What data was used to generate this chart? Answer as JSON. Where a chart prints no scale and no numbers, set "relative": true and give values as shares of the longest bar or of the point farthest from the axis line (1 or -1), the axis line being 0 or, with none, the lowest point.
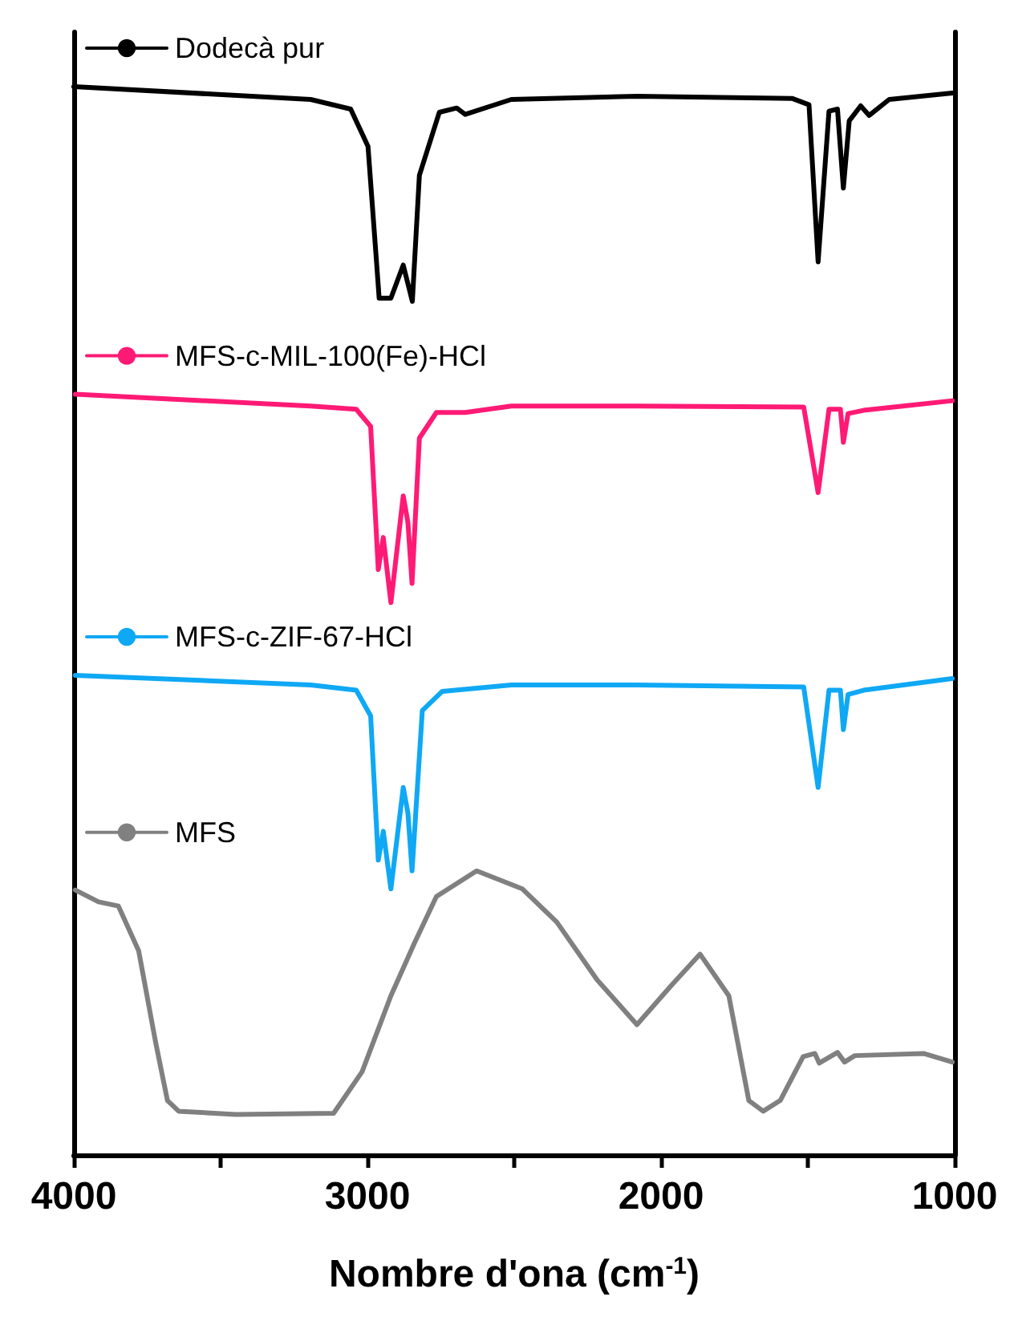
{
  "chart_data": {
    "type": "line",
    "relative": true,
    "xlabel": "Nombre d'ona (cm$^{-1}$)",
    "xlim": [
      4000,
      1000
    ],
    "xticks": [
      4000,
      {
        "value": 3500,
        "label": null
      },
      3000,
      {
        "value": 2500,
        "label": null
      },
      2000,
      {
        "value": 1500,
        "label": null
      },
      1000
    ],
    "legend": "top left",
    "grid": false,
    "marker": "none",
    "line_style": "solid",
    "series": [
      {
        "name": "Dodecà pur",
        "color": "#000000",
        "x": [
          4000,
          3193,
          3057,
          2998,
          2969,
          2960,
          2920,
          2878,
          2847,
          2823,
          2755,
          2696,
          2667,
          2510,
          2082,
          1554,
          1496,
          1465,
          1428,
          1399,
          1379,
          1359,
          1320,
          1291,
          1223,
          1008
        ],
        "values": [
          1.0,
          0.988,
          0.979,
          0.944,
          0.836,
          0.802,
          0.802,
          0.833,
          0.799,
          0.917,
          0.976,
          0.98,
          0.974,
          0.988,
          0.991,
          0.989,
          0.983,
          0.836,
          0.977,
          0.979,
          0.905,
          0.968,
          0.982,
          0.973,
          0.988,
          0.994
        ]
      },
      {
        "name": "MFS-c-MIL-100(Fe)-HCl",
        "color": "#ff1a75",
        "x": [
          3995,
          3193,
          3038,
          2989,
          2963,
          2946,
          2920,
          2878,
          2862,
          2848,
          2823,
          2765,
          2667,
          2510,
          2082,
          1514,
          1465,
          1428,
          1389,
          1379,
          1363,
          1310,
          1008
        ],
        "values": [
          0.712,
          0.701,
          0.698,
          0.682,
          0.548,
          0.578,
          0.517,
          0.617,
          0.592,
          0.535,
          0.671,
          0.695,
          0.695,
          0.701,
          0.701,
          0.7,
          0.62,
          0.698,
          0.698,
          0.667,
          0.694,
          0.697,
          0.706
        ]
      },
      {
        "name": "MFS-c-ZIF-67-HCl",
        "color": "#0fa8f5",
        "x": [
          3995,
          3193,
          3038,
          2989,
          2963,
          2946,
          2920,
          2878,
          2862,
          2848,
          2813,
          2745,
          2510,
          2082,
          1514,
          1465,
          1428,
          1389,
          1379,
          1363,
          1310,
          1008
        ],
        "values": [
          0.449,
          0.44,
          0.435,
          0.411,
          0.276,
          0.303,
          0.249,
          0.344,
          0.32,
          0.266,
          0.416,
          0.434,
          0.44,
          0.44,
          0.438,
          0.344,
          0.435,
          0.435,
          0.398,
          0.431,
          0.435,
          0.446
        ]
      },
      {
        "name": "MFS",
        "color": "#808080",
        "x": [
          3995,
          3916,
          3848,
          3779,
          3721,
          3681,
          3643,
          3448,
          3115,
          3018,
          2920,
          2842,
          2765,
          2628,
          2472,
          2355,
          2218,
          2082,
          1964,
          1867,
          1769,
          1701,
          1652,
          1594,
          1516,
          1476,
          1461,
          1399,
          1375,
          1340,
          1106,
          1008
        ],
        "values": [
          0.248,
          0.237,
          0.233,
          0.191,
          0.105,
          0.051,
          0.041,
          0.038,
          0.039,
          0.078,
          0.149,
          0.197,
          0.242,
          0.266,
          0.249,
          0.218,
          0.164,
          0.122,
          0.159,
          0.188,
          0.149,
          0.051,
          0.041,
          0.051,
          0.092,
          0.095,
          0.086,
          0.096,
          0.087,
          0.093,
          0.095,
          0.087
        ]
      }
    ]
  }
}
